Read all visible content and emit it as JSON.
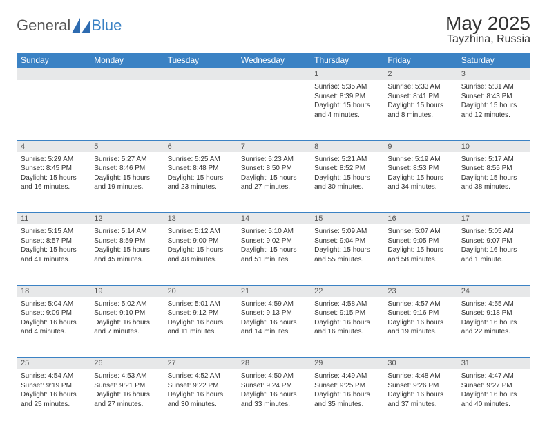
{
  "logo": {
    "text_general": "General",
    "text_blue": "Blue"
  },
  "header": {
    "month_title": "May 2025",
    "location": "Tayzhina, Russia"
  },
  "columns": [
    "Sunday",
    "Monday",
    "Tuesday",
    "Wednesday",
    "Thursday",
    "Friday",
    "Saturday"
  ],
  "colors": {
    "header_bg": "#3b82c4",
    "header_text": "#ffffff",
    "daynum_bg": "#e7e8e9",
    "grid_border": "#3b82c4",
    "body_text": "#333333"
  },
  "weeks": [
    [
      null,
      null,
      null,
      null,
      {
        "n": "1",
        "sunrise": "Sunrise: 5:35 AM",
        "sunset": "Sunset: 8:39 PM",
        "daylight": "Daylight: 15 hours and 4 minutes."
      },
      {
        "n": "2",
        "sunrise": "Sunrise: 5:33 AM",
        "sunset": "Sunset: 8:41 PM",
        "daylight": "Daylight: 15 hours and 8 minutes."
      },
      {
        "n": "3",
        "sunrise": "Sunrise: 5:31 AM",
        "sunset": "Sunset: 8:43 PM",
        "daylight": "Daylight: 15 hours and 12 minutes."
      }
    ],
    [
      {
        "n": "4",
        "sunrise": "Sunrise: 5:29 AM",
        "sunset": "Sunset: 8:45 PM",
        "daylight": "Daylight: 15 hours and 16 minutes."
      },
      {
        "n": "5",
        "sunrise": "Sunrise: 5:27 AM",
        "sunset": "Sunset: 8:46 PM",
        "daylight": "Daylight: 15 hours and 19 minutes."
      },
      {
        "n": "6",
        "sunrise": "Sunrise: 5:25 AM",
        "sunset": "Sunset: 8:48 PM",
        "daylight": "Daylight: 15 hours and 23 minutes."
      },
      {
        "n": "7",
        "sunrise": "Sunrise: 5:23 AM",
        "sunset": "Sunset: 8:50 PM",
        "daylight": "Daylight: 15 hours and 27 minutes."
      },
      {
        "n": "8",
        "sunrise": "Sunrise: 5:21 AM",
        "sunset": "Sunset: 8:52 PM",
        "daylight": "Daylight: 15 hours and 30 minutes."
      },
      {
        "n": "9",
        "sunrise": "Sunrise: 5:19 AM",
        "sunset": "Sunset: 8:53 PM",
        "daylight": "Daylight: 15 hours and 34 minutes."
      },
      {
        "n": "10",
        "sunrise": "Sunrise: 5:17 AM",
        "sunset": "Sunset: 8:55 PM",
        "daylight": "Daylight: 15 hours and 38 minutes."
      }
    ],
    [
      {
        "n": "11",
        "sunrise": "Sunrise: 5:15 AM",
        "sunset": "Sunset: 8:57 PM",
        "daylight": "Daylight: 15 hours and 41 minutes."
      },
      {
        "n": "12",
        "sunrise": "Sunrise: 5:14 AM",
        "sunset": "Sunset: 8:59 PM",
        "daylight": "Daylight: 15 hours and 45 minutes."
      },
      {
        "n": "13",
        "sunrise": "Sunrise: 5:12 AM",
        "sunset": "Sunset: 9:00 PM",
        "daylight": "Daylight: 15 hours and 48 minutes."
      },
      {
        "n": "14",
        "sunrise": "Sunrise: 5:10 AM",
        "sunset": "Sunset: 9:02 PM",
        "daylight": "Daylight: 15 hours and 51 minutes."
      },
      {
        "n": "15",
        "sunrise": "Sunrise: 5:09 AM",
        "sunset": "Sunset: 9:04 PM",
        "daylight": "Daylight: 15 hours and 55 minutes."
      },
      {
        "n": "16",
        "sunrise": "Sunrise: 5:07 AM",
        "sunset": "Sunset: 9:05 PM",
        "daylight": "Daylight: 15 hours and 58 minutes."
      },
      {
        "n": "17",
        "sunrise": "Sunrise: 5:05 AM",
        "sunset": "Sunset: 9:07 PM",
        "daylight": "Daylight: 16 hours and 1 minute."
      }
    ],
    [
      {
        "n": "18",
        "sunrise": "Sunrise: 5:04 AM",
        "sunset": "Sunset: 9:09 PM",
        "daylight": "Daylight: 16 hours and 4 minutes."
      },
      {
        "n": "19",
        "sunrise": "Sunrise: 5:02 AM",
        "sunset": "Sunset: 9:10 PM",
        "daylight": "Daylight: 16 hours and 7 minutes."
      },
      {
        "n": "20",
        "sunrise": "Sunrise: 5:01 AM",
        "sunset": "Sunset: 9:12 PM",
        "daylight": "Daylight: 16 hours and 11 minutes."
      },
      {
        "n": "21",
        "sunrise": "Sunrise: 4:59 AM",
        "sunset": "Sunset: 9:13 PM",
        "daylight": "Daylight: 16 hours and 14 minutes."
      },
      {
        "n": "22",
        "sunrise": "Sunrise: 4:58 AM",
        "sunset": "Sunset: 9:15 PM",
        "daylight": "Daylight: 16 hours and 16 minutes."
      },
      {
        "n": "23",
        "sunrise": "Sunrise: 4:57 AM",
        "sunset": "Sunset: 9:16 PM",
        "daylight": "Daylight: 16 hours and 19 minutes."
      },
      {
        "n": "24",
        "sunrise": "Sunrise: 4:55 AM",
        "sunset": "Sunset: 9:18 PM",
        "daylight": "Daylight: 16 hours and 22 minutes."
      }
    ],
    [
      {
        "n": "25",
        "sunrise": "Sunrise: 4:54 AM",
        "sunset": "Sunset: 9:19 PM",
        "daylight": "Daylight: 16 hours and 25 minutes."
      },
      {
        "n": "26",
        "sunrise": "Sunrise: 4:53 AM",
        "sunset": "Sunset: 9:21 PM",
        "daylight": "Daylight: 16 hours and 27 minutes."
      },
      {
        "n": "27",
        "sunrise": "Sunrise: 4:52 AM",
        "sunset": "Sunset: 9:22 PM",
        "daylight": "Daylight: 16 hours and 30 minutes."
      },
      {
        "n": "28",
        "sunrise": "Sunrise: 4:50 AM",
        "sunset": "Sunset: 9:24 PM",
        "daylight": "Daylight: 16 hours and 33 minutes."
      },
      {
        "n": "29",
        "sunrise": "Sunrise: 4:49 AM",
        "sunset": "Sunset: 9:25 PM",
        "daylight": "Daylight: 16 hours and 35 minutes."
      },
      {
        "n": "30",
        "sunrise": "Sunrise: 4:48 AM",
        "sunset": "Sunset: 9:26 PM",
        "daylight": "Daylight: 16 hours and 37 minutes."
      },
      {
        "n": "31",
        "sunrise": "Sunrise: 4:47 AM",
        "sunset": "Sunset: 9:27 PM",
        "daylight": "Daylight: 16 hours and 40 minutes."
      }
    ]
  ]
}
